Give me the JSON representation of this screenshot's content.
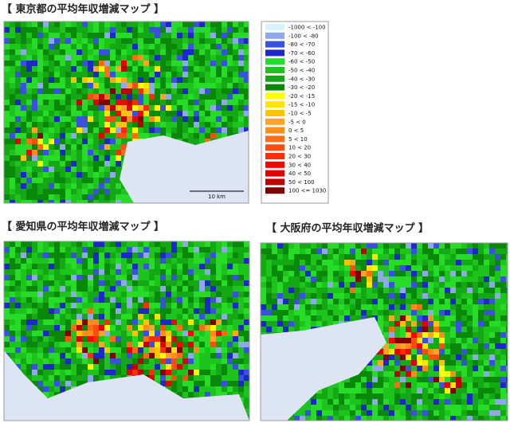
{
  "maps": [
    {
      "title": "【 東京都の平均年収増減マップ 】"
    },
    {
      "title": "【 愛知県の平均年収増減マップ 】"
    },
    {
      "title": "【 大阪府の平均年収増減マップ 】"
    }
  ],
  "scale_bar": "10 km",
  "legend": {
    "items": [
      {
        "label": "-1000 < -100",
        "color": "#d6f3ff"
      },
      {
        "label": "-100 < -80",
        "color": "#8ea8ea"
      },
      {
        "label": "-80 < -70",
        "color": "#3a50e0"
      },
      {
        "label": "-70 < -60",
        "color": "#1e28c8"
      },
      {
        "label": "-60 < -50",
        "color": "#26dc26"
      },
      {
        "label": "-50 < -40",
        "color": "#1cc41c"
      },
      {
        "label": "-40 < -30",
        "color": "#14a814"
      },
      {
        "label": "-30 < -20",
        "color": "#0a880a"
      },
      {
        "label": "-20 < -15",
        "color": "#ffff00"
      },
      {
        "label": "-15 < -10",
        "color": "#ffe400"
      },
      {
        "label": "-10 < -5",
        "color": "#ffc400"
      },
      {
        "label": "-5 < 0",
        "color": "#ffa424"
      },
      {
        "label": "0 < 5",
        "color": "#ff8c1c"
      },
      {
        "label": "5 < 10",
        "color": "#ff6c14"
      },
      {
        "label": "10 < 20",
        "color": "#ff4c10"
      },
      {
        "label": "20 < 30",
        "color": "#ff2c0a"
      },
      {
        "label": "30 < 40",
        "color": "#ff0000"
      },
      {
        "label": "40 < 50",
        "color": "#e00000"
      },
      {
        "label": "50 < 100",
        "color": "#c00000"
      },
      {
        "label": "100 <= 1030",
        "color": "#800000"
      }
    ]
  }
}
